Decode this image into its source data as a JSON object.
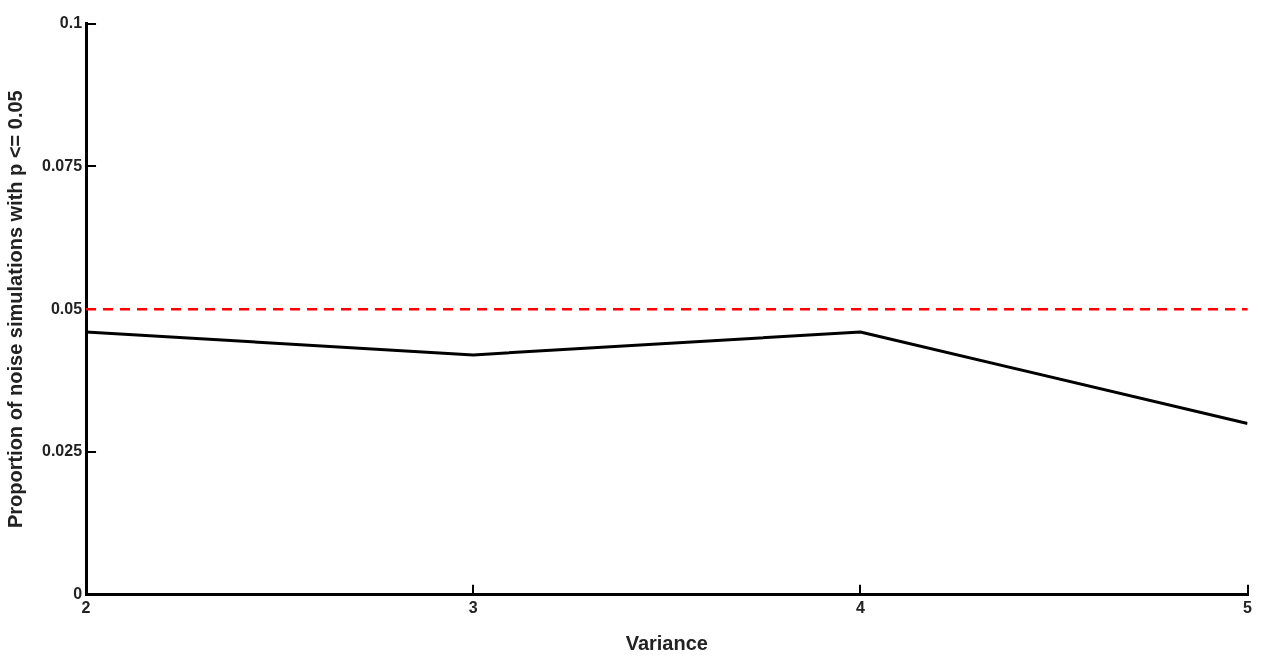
{
  "chart_data": {
    "type": "line",
    "xlabel": "Variance",
    "ylabel": "Proportion of noise simulations with p <= 0.05",
    "x": [
      2,
      3,
      4,
      5
    ],
    "series": [
      {
        "color": "#000000",
        "values": [
          0.046,
          0.042,
          0.046,
          0.03
        ]
      }
    ],
    "xlim": [
      2,
      5
    ],
    "xticks": [
      2,
      3,
      4,
      5
    ],
    "ylim": [
      0,
      0.1
    ],
    "yticks": [
      0,
      0.025,
      0.05,
      0.075,
      0.1
    ],
    "grid": false,
    "legend": false,
    "marker": "none",
    "line_style": "solid",
    "ref_lines": [
      {
        "axis": "y",
        "value": 0.05,
        "color": "#ff0000",
        "line_style": "dashed"
      }
    ]
  }
}
